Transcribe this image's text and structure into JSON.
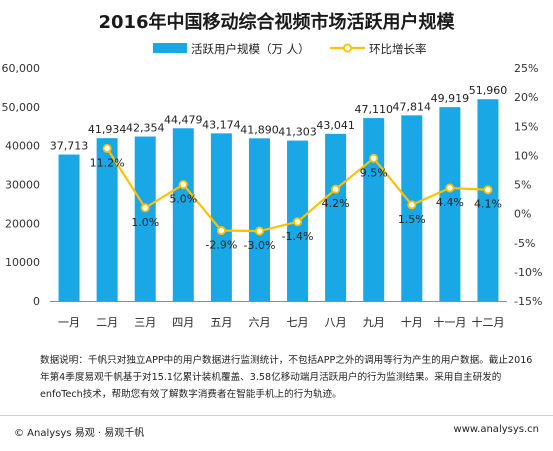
{
  "title": "2016年中国移动综合视频市场活跃用户规模",
  "note": "数据说明：千帆只对独立APP中的用户数据进行监测统计，不包括APP之外的调用等行为产生的用户数据。截止2016年第4季度易观千帆基于对15.1亿累计装机覆盖、3.58亿移动端月活跃用户的行为监测结果。采用自主研发的enfoTech技术，帮助您有效了解数字消费者在智能手机上的行为轨迹。",
  "footer": {
    "copyright": "© Analysys 易观 · 易观千帆",
    "website": "www.analysys.cn"
  },
  "colors": {
    "bar": "#19a7e5",
    "line": "#ffc000",
    "marker_fill": "#ffffff"
  },
  "chart_data": {
    "type": "bar",
    "categories": [
      "一月",
      "二月",
      "三月",
      "四月",
      "五月",
      "六月",
      "七月",
      "八月",
      "九月",
      "十月",
      "十一月",
      "十二月"
    ],
    "series": [
      {
        "name": "活跃用户规模（万 人）",
        "type": "bar",
        "axis": "left",
        "values": [
          37713,
          41934,
          42354,
          44479,
          43174,
          41890,
          41303,
          43041,
          47110,
          47814,
          49919,
          51960
        ],
        "labels": [
          "37,713",
          "41,934",
          "42,354",
          "44,479",
          "43,174",
          "41,890",
          "41,303",
          "43,041",
          "47,110",
          "47,814",
          "49,919",
          "51,960"
        ]
      },
      {
        "name": "环比增长率",
        "type": "line",
        "axis": "right",
        "values": [
          null,
          11.2,
          1.0,
          5.0,
          -2.9,
          -3.0,
          -1.4,
          4.2,
          9.5,
          1.5,
          4.4,
          4.1
        ],
        "labels": [
          "",
          "11.2%",
          "1.0%",
          "5.0%",
          "-2.9%",
          "-3.0%",
          "-1.4%",
          "4.2%",
          "9.5%",
          "1.5%",
          "4.4%",
          "4.1%"
        ]
      }
    ],
    "y_left": {
      "min": 0,
      "max": 60000,
      "ticks": [
        "0",
        "10000",
        "20000",
        "30000",
        "40000",
        "50,000",
        "60,000"
      ]
    },
    "y_right": {
      "min": -15,
      "max": 25,
      "ticks": [
        "-15%",
        "-10%",
        "-5%",
        "0%",
        "5%",
        "10%",
        "15%",
        "20%",
        "25%"
      ]
    },
    "legend_position": "top-center",
    "grid": false
  }
}
